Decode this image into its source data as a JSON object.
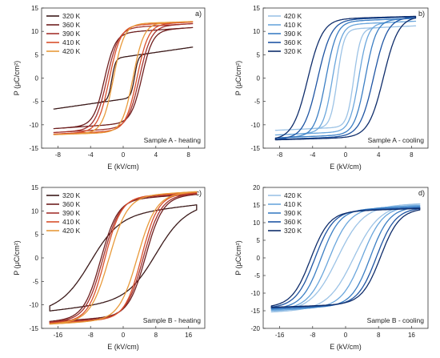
{
  "chart_data": [
    {
      "type": "line",
      "panel_tag": "a)",
      "annotation": "Sample A - heating",
      "xlabel": "E (kV/cm)",
      "ylabel": "P (μC/cm²)",
      "xlim": [
        -10,
        10
      ],
      "ylim": [
        -15,
        15
      ],
      "xticks": [
        -8,
        -4,
        0,
        4,
        8
      ],
      "yticks": [
        -15,
        -10,
        -5,
        0,
        5,
        10,
        15
      ],
      "grid": false,
      "legend_position": "top-left",
      "emax": 8.5,
      "series": [
        {
          "name": "320 K",
          "color": "#3b1a1a",
          "ps": 4.5,
          "ec": 1.4,
          "k": 2.2,
          "tilt": 0.25
        },
        {
          "name": "360 K",
          "color": "#6e1f1f",
          "ps": 9.8,
          "ec": 2.3,
          "k": 0.75,
          "tilt": 0.12
        },
        {
          "name": "390 K",
          "color": "#a3322e",
          "ps": 10.8,
          "ec": 2.0,
          "k": 0.7,
          "tilt": 0.1
        },
        {
          "name": "410 K",
          "color": "#d9502c",
          "ps": 11.3,
          "ec": 1.7,
          "k": 0.72,
          "tilt": 0.08
        },
        {
          "name": "420 K",
          "color": "#e89a3a",
          "ps": 11.6,
          "ec": 1.2,
          "k": 0.75,
          "tilt": 0.06
        }
      ]
    },
    {
      "type": "line",
      "panel_tag": "b)",
      "annotation": "Sample A - cooling",
      "xlabel": "E (kV/cm)",
      "ylabel": "P (μC/cm²)",
      "xlim": [
        -10,
        10
      ],
      "ylim": [
        -15,
        15
      ],
      "xticks": [
        -8,
        -4,
        0,
        4,
        8
      ],
      "yticks": [
        -15,
        -10,
        -5,
        0,
        5,
        10,
        15
      ],
      "grid": false,
      "legend_position": "top-left",
      "emax": 8.5,
      "series": [
        {
          "name": "420 K",
          "color": "#9cc3e6",
          "ps": 10.5,
          "ec": 1.0,
          "k": 1.2,
          "tilt": 0.08
        },
        {
          "name": "410 K",
          "color": "#6aa6dc",
          "ps": 11.5,
          "ec": 1.6,
          "k": 0.9,
          "tilt": 0.08
        },
        {
          "name": "390 K",
          "color": "#3c7fc4",
          "ps": 12.2,
          "ec": 2.4,
          "k": 0.75,
          "tilt": 0.07
        },
        {
          "name": "360 K",
          "color": "#1f55a3",
          "ps": 12.6,
          "ec": 3.4,
          "k": 0.6,
          "tilt": 0.06
        },
        {
          "name": "320 K",
          "color": "#0f2d6b",
          "ps": 12.8,
          "ec": 4.6,
          "k": 0.55,
          "tilt": 0.05
        }
      ]
    },
    {
      "type": "line",
      "panel_tag": "c)",
      "annotation": "Sample B - heating",
      "xlabel": "E (kV/cm)",
      "ylabel": "P (μC/cm²)",
      "xlim": [
        -20,
        20
      ],
      "ylim": [
        -15,
        15
      ],
      "xticks": [
        -16,
        -8,
        0,
        8,
        16
      ],
      "yticks": [
        -15,
        -10,
        -5,
        0,
        5,
        10,
        15
      ],
      "grid": false,
      "legend_position": "top-left",
      "emax": 18,
      "series": [
        {
          "name": "320 K",
          "color": "#3b1a1a",
          "ps": 9.5,
          "ec": 8.0,
          "k": 0.14,
          "tilt": 0.1
        },
        {
          "name": "360 K",
          "color": "#6e1f1f",
          "ps": 12.5,
          "ec": 5.5,
          "k": 0.24,
          "tilt": 0.06
        },
        {
          "name": "390 K",
          "color": "#a3322e",
          "ps": 12.8,
          "ec": 5.0,
          "k": 0.24,
          "tilt": 0.05
        },
        {
          "name": "410 K",
          "color": "#d9502c",
          "ps": 13.0,
          "ec": 4.5,
          "k": 0.25,
          "tilt": 0.05
        },
        {
          "name": "420 K",
          "color": "#e89a3a",
          "ps": 13.2,
          "ec": 3.5,
          "k": 0.22,
          "tilt": 0.05
        }
      ]
    },
    {
      "type": "line",
      "panel_tag": "d)",
      "annotation": "Sample B - cooling",
      "xlabel": "E (kV/cm)",
      "ylabel": "P (μC/cm²)",
      "xlim": [
        -20,
        20
      ],
      "ylim": [
        -20,
        20
      ],
      "xticks": [
        -16,
        -8,
        0,
        8,
        16
      ],
      "yticks": [
        -20,
        -15,
        -10,
        -5,
        0,
        5,
        10,
        15,
        20
      ],
      "grid": false,
      "legend_position": "top-left",
      "emax": 18,
      "series": [
        {
          "name": "420 K",
          "color": "#9cc3e6",
          "ps": 14.5,
          "ec": 2.0,
          "k": 0.16,
          "tilt": 0.05
        },
        {
          "name": "410 K",
          "color": "#6aa6dc",
          "ps": 14.0,
          "ec": 4.0,
          "k": 0.2,
          "tilt": 0.05
        },
        {
          "name": "390 K",
          "color": "#3c7fc4",
          "ps": 13.8,
          "ec": 6.0,
          "k": 0.22,
          "tilt": 0.04
        },
        {
          "name": "360 K",
          "color": "#1f55a3",
          "ps": 13.5,
          "ec": 7.5,
          "k": 0.22,
          "tilt": 0.04
        },
        {
          "name": "320 K",
          "color": "#0f2d6b",
          "ps": 13.3,
          "ec": 8.5,
          "k": 0.22,
          "tilt": 0.04
        }
      ]
    }
  ]
}
